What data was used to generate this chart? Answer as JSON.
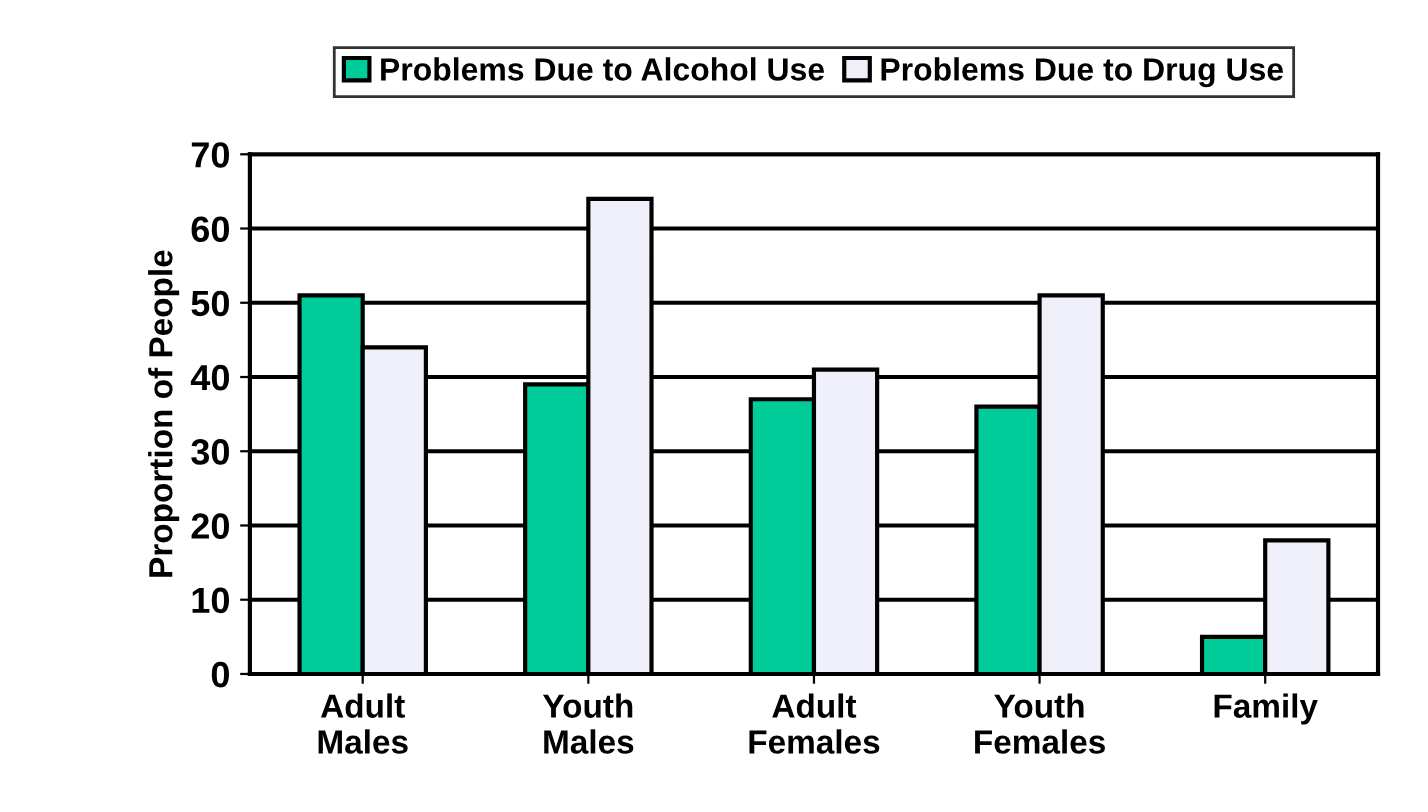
{
  "chart_data": {
    "type": "bar",
    "ylabel": "Proportion of People",
    "categories": [
      "Adult\nMales",
      "Youth\nMales",
      "Adult\nFemales",
      "Youth\nFemales",
      "Family"
    ],
    "series": [
      {
        "name": "Problems Due to Alcohol Use",
        "color": "#00cc99",
        "values": [
          51,
          39,
          37,
          36,
          5
        ]
      },
      {
        "name": "Problems Due to Drug Use",
        "color": "#f0f0fa",
        "values": [
          44,
          64,
          41,
          51,
          18
        ]
      }
    ],
    "ylim": [
      0,
      70
    ],
    "yticks": [
      0,
      10,
      20,
      30,
      40,
      50,
      60,
      70
    ],
    "grid": "y",
    "legend": "top"
  }
}
